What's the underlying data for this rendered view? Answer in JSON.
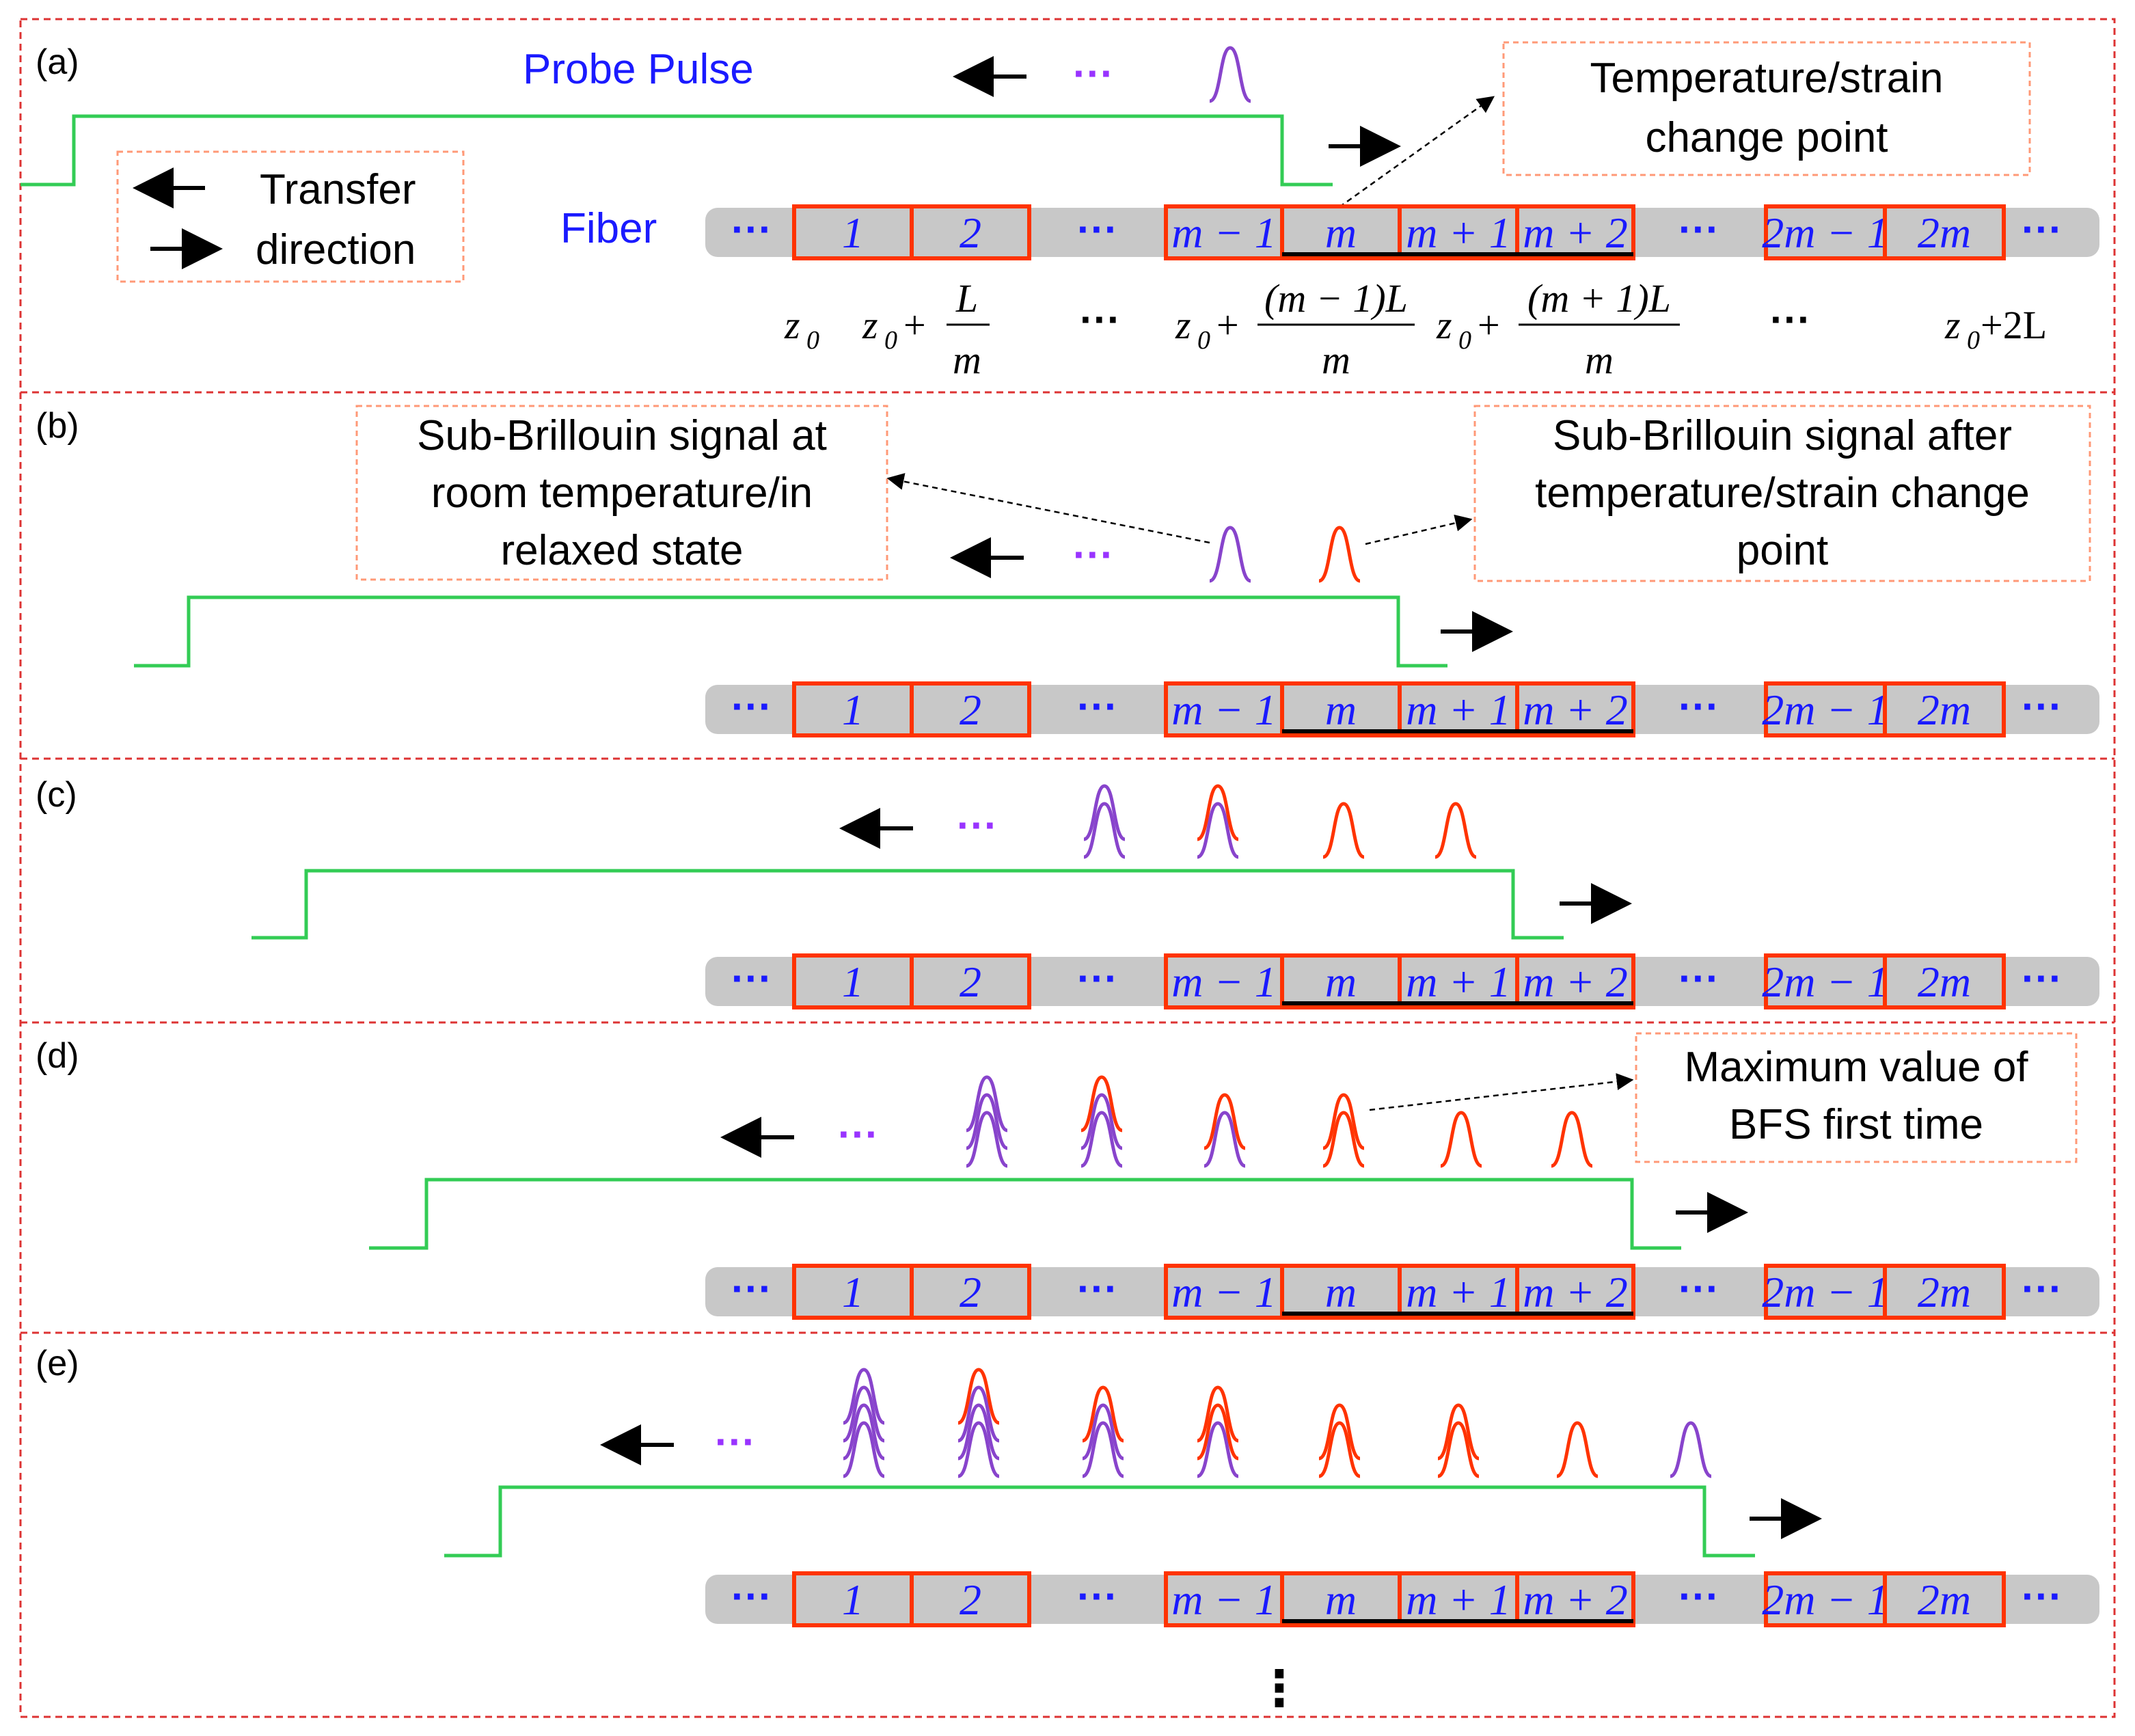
{
  "panels": [
    {
      "letter": "(a)"
    },
    {
      "letter": "(b)"
    },
    {
      "letter": "(c)"
    },
    {
      "letter": "(d)"
    },
    {
      "letter": "(e)"
    }
  ],
  "labels": {
    "probe_pulse": "Probe Pulse",
    "fiber": "Fiber",
    "legend_line1": "Transfer",
    "legend_line2": "direction",
    "temp_change_line1": "Temperature/strain",
    "temp_change_line2": "change point",
    "sub_room_line1": "Sub-Brillouin signal at",
    "sub_room_line2": "room temperature/in",
    "sub_room_line3": "relaxed state",
    "sub_after_line1": "Sub-Brillouin signal after",
    "sub_after_line2": "temperature/strain change",
    "sub_after_line3": "point",
    "max_bfs_line1": "Maximum value of",
    "max_bfs_line2": "BFS first time",
    "ellipsis": "···",
    "vertical_ellipsis": "⋮"
  },
  "segments": [
    "1",
    "2",
    "m − 1",
    "m",
    "m + 1",
    "m + 2",
    "2m − 1",
    "2m"
  ],
  "positions": {
    "z0": "z",
    "z0_sub": "0",
    "z0_plus": "z",
    "plus": "+",
    "L_over_m_num": "L",
    "L_over_m_den": "m",
    "m_minus_1_L_num": "(m − 1)L",
    "m_minus_1_L_den": "m",
    "m_plus_1_L_num": "(m + 1)L",
    "m_plus_1_L_den": "m",
    "two_L": "+2L",
    "dots": "···"
  },
  "colors": {
    "fiber": "#c8c8c8",
    "segment_border": "#ff3300",
    "segment_text": "#1a1aff",
    "pulse": "#33cc55",
    "purple": "#8844cc",
    "red": "#ff3300",
    "frame": "#dd3333"
  },
  "pulse_stacks": [
    [
      {
        "color": "purple",
        "n": 1
      }
    ],
    [
      {
        "color": "purple",
        "n": 1
      },
      {
        "color": "red",
        "n": 1
      }
    ],
    [
      {
        "color": "purple",
        "n": 2
      },
      {
        "color": "mixed_pr",
        "n": 2
      },
      {
        "color": "red",
        "n": 1
      },
      {
        "color": "red",
        "n": 1
      }
    ],
    [
      {
        "color": "purple",
        "n": 3
      },
      {
        "color": "mixed_prr",
        "n": 3
      },
      {
        "color": "mixed_rp",
        "n": 2
      },
      {
        "color": "red",
        "n": 2
      },
      {
        "color": "red",
        "n": 1
      },
      {
        "color": "red",
        "n": 1
      }
    ],
    [
      {
        "color": "purple",
        "n": 4
      },
      {
        "color": "mixed_rppp",
        "n": 4
      },
      {
        "color": "mixed_rpp",
        "n": 3
      },
      {
        "color": "mixed_rrp",
        "n": 3
      },
      {
        "color": "red",
        "n": 2
      },
      {
        "color": "red",
        "n": 2
      },
      {
        "color": "red",
        "n": 1
      },
      {
        "color": "purple",
        "n": 1
      }
    ]
  ]
}
